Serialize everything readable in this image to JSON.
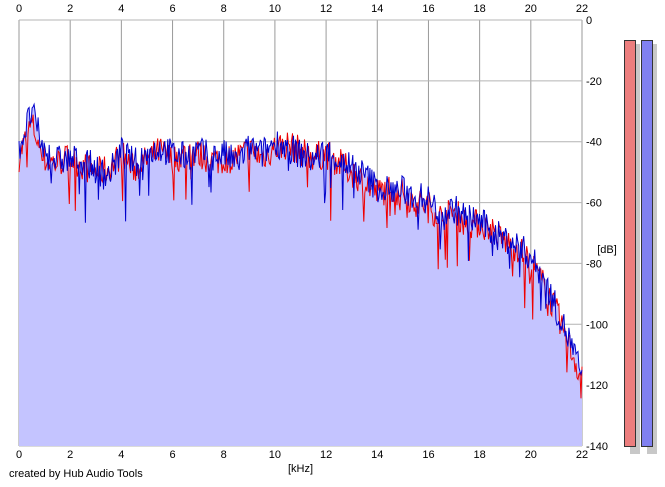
{
  "credit": "created by Hub Audio Tools",
  "colors": {
    "fill": "#c4c4ff",
    "grid": "#9a9a9a",
    "axis": "#b4b4b4",
    "channel_red": "#ee0000",
    "channel_blue": "#0000cc",
    "meter_left": "#ec7e7e",
    "meter_right": "#8080f0"
  },
  "chart_data": {
    "type": "line",
    "title": "",
    "xlabel": "[kHz]",
    "ylabel": "[dB]",
    "xlim": [
      0,
      22
    ],
    "ylim": [
      -140,
      0
    ],
    "x_ticks": [
      "0",
      "2",
      "4",
      "6",
      "8",
      "10",
      "12",
      "14",
      "16",
      "18",
      "20",
      "22"
    ],
    "y_ticks": [
      "0",
      "-20",
      "-40",
      "-60",
      "-80",
      "-100",
      "-120",
      "-140"
    ],
    "grid": true,
    "x": [
      0,
      0.5,
      1,
      1.5,
      2,
      2.5,
      3,
      3.5,
      4,
      4.5,
      5,
      5.5,
      6,
      6.5,
      7,
      7.5,
      8,
      8.5,
      9,
      9.5,
      10,
      10.5,
      11,
      11.5,
      12,
      12.5,
      13,
      13.5,
      14,
      14.5,
      15,
      15.5,
      16,
      16.5,
      17,
      17.5,
      18,
      18.5,
      19,
      19.5,
      20,
      20.5,
      21,
      21.5,
      22
    ],
    "series": [
      {
        "color": "#ee0000",
        "values": [
          -45,
          -34,
          -46,
          -47,
          -45,
          -48,
          -50,
          -49,
          -44,
          -49,
          -46,
          -43,
          -46,
          -44,
          -44,
          -46,
          -46,
          -45,
          -43,
          -45,
          -42,
          -41,
          -43,
          -45,
          -44,
          -47,
          -50,
          -53,
          -57,
          -55,
          -57,
          -60,
          -61,
          -65,
          -63,
          -67,
          -67,
          -69,
          -73,
          -75,
          -80,
          -87,
          -96,
          -107,
          -118
        ]
      },
      {
        "color": "#0000cc",
        "values": [
          -42,
          -30,
          -44,
          -46,
          -46,
          -46,
          -49,
          -51,
          -43,
          -47,
          -44,
          -42,
          -44,
          -45,
          -43,
          -45,
          -44,
          -47,
          -42,
          -44,
          -40,
          -42,
          -44,
          -46,
          -43,
          -46,
          -48,
          -51,
          -55,
          -56,
          -56,
          -58,
          -59,
          -64,
          -62,
          -65,
          -66,
          -70,
          -72,
          -74,
          -78,
          -85,
          -95,
          -105,
          -117
        ]
      }
    ],
    "level_meters": [
      {
        "channel": "left",
        "color": "#ec7e7e",
        "level": 1.0
      },
      {
        "channel": "right",
        "color": "#8080f0",
        "level": 1.0
      }
    ]
  }
}
